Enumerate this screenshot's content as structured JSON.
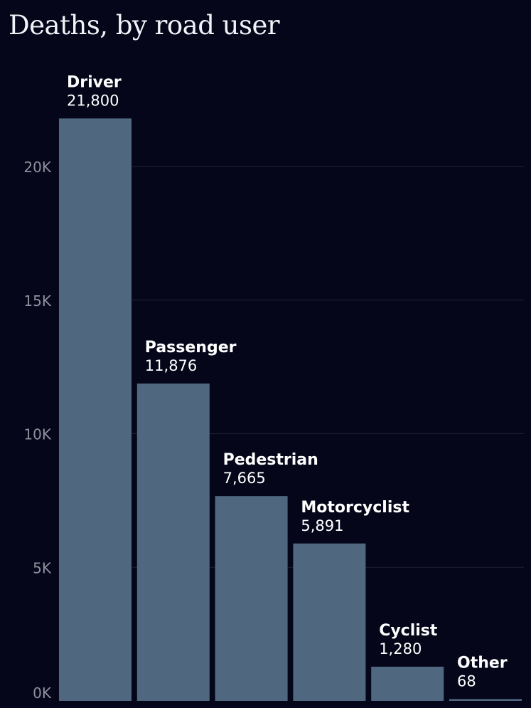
{
  "chart_data": {
    "type": "bar",
    "title": "Deaths, by road user",
    "xlabel": "",
    "ylabel": "",
    "categories": [
      "Driver",
      "Passenger",
      "Pedestrian",
      "Motorcyclist",
      "Cyclist",
      "Other"
    ],
    "values": [
      21800,
      11876,
      7665,
      5891,
      1280,
      68
    ],
    "value_labels": [
      "21,800",
      "11,876",
      "7,665",
      "5,891",
      "1,280",
      "68"
    ],
    "ylim": [
      0,
      22000
    ],
    "y_ticks": [
      0,
      5000,
      10000,
      15000,
      20000
    ],
    "y_tick_labels": [
      "0K",
      "5K",
      "10K",
      "15K",
      "20K"
    ],
    "grid": true,
    "legend": "none",
    "colors": {
      "background": "#05061a",
      "bar": "#50687f",
      "grid": "#1e2133",
      "tick_label": "#8e919c",
      "label": "#ffffff"
    }
  }
}
